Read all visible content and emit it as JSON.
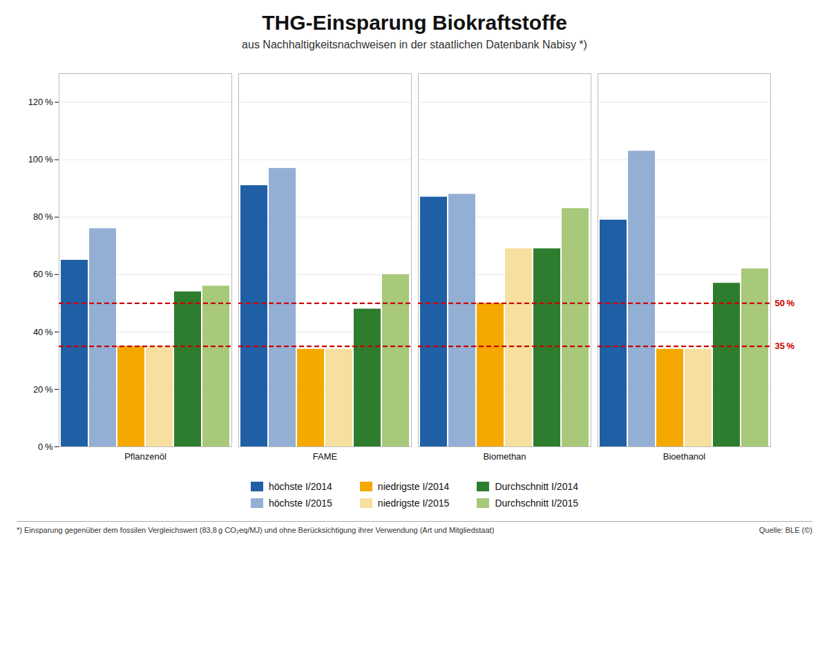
{
  "chart_data": {
    "type": "bar",
    "title": "THG-Einsparung Biokraftstoffe",
    "subtitle": "aus Nachhaltigkeitsnachweisen in der staatlichen Datenbank Nabisy *)",
    "categories": [
      "Pflanzenöl",
      "FAME",
      "Biomethan",
      "Bioethanol"
    ],
    "series": [
      {
        "name": "höchste I/2014",
        "color": "#1f5fa6",
        "values": [
          65,
          91,
          87,
          79
        ]
      },
      {
        "name": "höchste I/2015",
        "color": "#94afd4",
        "values": [
          76,
          97,
          88,
          103
        ]
      },
      {
        "name": "niedrigste I/2014",
        "color": "#f5a800",
        "values": [
          35,
          34,
          50,
          34
        ]
      },
      {
        "name": "niedrigste I/2015",
        "color": "#f7dfa0",
        "values": [
          35,
          34,
          69,
          34
        ]
      },
      {
        "name": "Durchschnitt I/2014",
        "color": "#2e7d2e",
        "values": [
          54,
          48,
          69,
          57
        ]
      },
      {
        "name": "Durchschnitt I/2015",
        "color": "#a8c87a",
        "values": [
          56,
          60,
          83,
          62
        ]
      }
    ],
    "hlines": [
      {
        "y": 50,
        "label": "50 %",
        "color": "#cc0000"
      },
      {
        "y": 35,
        "label": "35 %",
        "color": "#cc0000"
      }
    ],
    "ylim": [
      0,
      130
    ],
    "yticks": [
      {
        "value": 0,
        "label": "0 %"
      },
      {
        "value": 20,
        "label": "20 %"
      },
      {
        "value": 40,
        "label": "40 %"
      },
      {
        "value": 60,
        "label": "60 %"
      },
      {
        "value": 80,
        "label": "80 %"
      },
      {
        "value": 100,
        "label": "100 %"
      },
      {
        "value": 120,
        "label": "120 %"
      }
    ],
    "grid": true,
    "legend": "bottom",
    "footnote": "*) Einsparung gegenüber dem fossilen Vergleichswert (83,8 g CO₂eq/MJ) und ohne Berücksichtigung ihrer Verwendung (Art und Mitgliedstaat)",
    "source": "Quelle: BLE (©)"
  }
}
